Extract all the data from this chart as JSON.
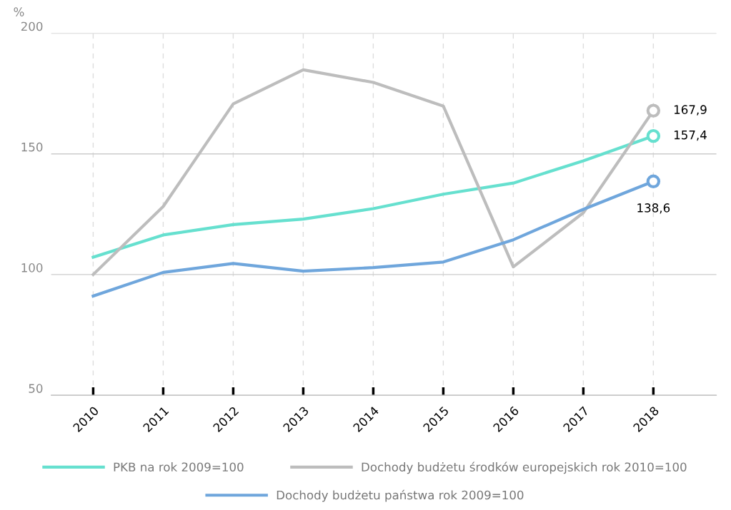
{
  "chart_data": {
    "type": "line",
    "ylabel": "%",
    "categories": [
      "2010",
      "2011",
      "2012",
      "2013",
      "2014",
      "2015",
      "2016",
      "2017",
      "2018"
    ],
    "series": [
      {
        "name": "PKB na rok 2009=100",
        "color": "#66e0cf",
        "values": [
          107.2,
          116.4,
          120.7,
          123,
          127.3,
          133.3,
          137.9,
          147.1,
          157.4
        ],
        "value_labels": [
          null,
          null,
          null,
          null,
          null,
          null,
          null,
          null,
          "157,4"
        ]
      },
      {
        "name": "Dochody budżetu środków europejskich rok 2010=100",
        "color": "#bdbdbd",
        "values": [
          100,
          128.2,
          170.7,
          184.8,
          179.6,
          169.8,
          103.2,
          125.6,
          167.9
        ],
        "value_labels": [
          null,
          null,
          null,
          null,
          null,
          null,
          null,
          null,
          "167,9"
        ]
      },
      {
        "name": "Dochody budżetu państwa rok 2009=100",
        "color": "#6fa6dc",
        "values": [
          91.1,
          100.9,
          104.6,
          101.4,
          102.9,
          105.2,
          114.4,
          127,
          138.6
        ],
        "value_labels": [
          null,
          null,
          null,
          null,
          null,
          null,
          null,
          null,
          "138,6"
        ]
      }
    ],
    "ylim": [
      50,
      200
    ],
    "yticks": [
      50,
      100,
      150,
      200
    ],
    "grid": true,
    "legend": "bottom",
    "line_style": "solid"
  }
}
